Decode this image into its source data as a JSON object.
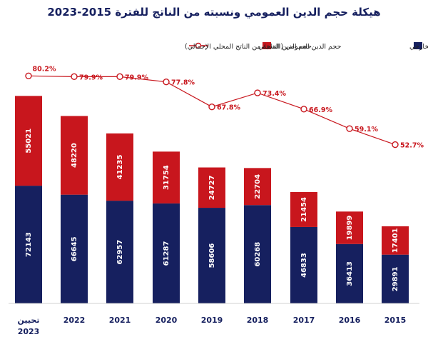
{
  "chart_data": {
    "type": "bar",
    "stacked": true,
    "title": "هيكلة حجم الدين العمومي ونسبته من الناتج للفترة 2015-2023",
    "categories": [
      "تحيين 2023",
      "2022",
      "2021",
      "2020",
      "2019",
      "2018",
      "2017",
      "2016",
      "2015"
    ],
    "series": [
      {
        "name": "حجم الدين الخارجي",
        "color": "#16205f",
        "values": [
          72143,
          66645,
          62957,
          61287,
          58606,
          60268,
          46833,
          36413,
          29891
        ]
      },
      {
        "name": "حجم الدين الداخلي",
        "color": "#c8161d",
        "values": [
          55021,
          48220,
          41235,
          31754,
          24727,
          22704,
          21454,
          19899,
          17401
        ]
      },
      {
        "name": "حجم الدين العمومي (النسبة من الناتج المحلي الإجمالي)",
        "color": "#c8161d",
        "type": "line",
        "values": [
          80.2,
          79.9,
          79.9,
          77.8,
          67.8,
          73.4,
          66.9,
          59.1,
          52.7
        ],
        "value_labels": [
          "80.2%",
          "79.9%",
          "79.9%",
          "77.8%",
          "67.8%",
          "73.4%",
          "66.9%",
          "59.1%",
          "52.7%"
        ]
      }
    ],
    "legend_position": "top",
    "grid": false,
    "ylim": [
      0,
      140000
    ]
  }
}
